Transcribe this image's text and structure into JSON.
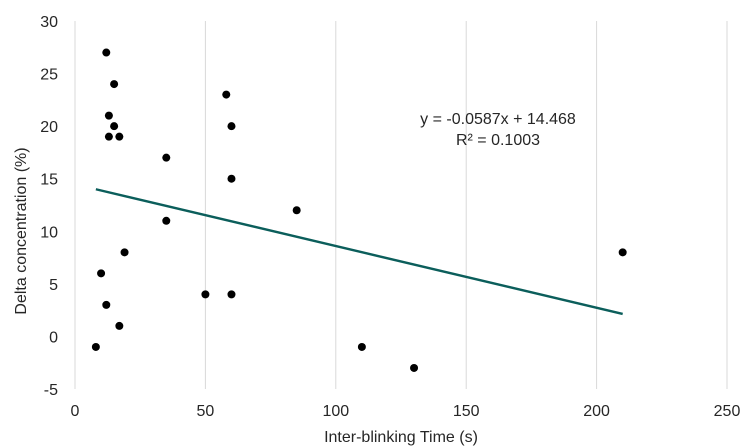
{
  "chart_data": {
    "type": "scatter",
    "title": "",
    "xlabel": "Inter-blinking Time (s)",
    "ylabel": "Delta concentration (%)",
    "xlim": [
      0,
      250
    ],
    "ylim": [
      -5,
      30
    ],
    "x_ticks": [
      "0",
      "50",
      "100",
      "150",
      "200",
      "250"
    ],
    "y_ticks": [
      "-5",
      "0",
      "5",
      "10",
      "15",
      "20",
      "25",
      "30"
    ],
    "grid": "vertical",
    "series": [
      {
        "points": [
          {
            "x": 12,
            "y": 27
          },
          {
            "x": 15,
            "y": 24
          },
          {
            "x": 13,
            "y": 21
          },
          {
            "x": 15,
            "y": 20
          },
          {
            "x": 13,
            "y": 19
          },
          {
            "x": 17,
            "y": 19
          },
          {
            "x": 58,
            "y": 23
          },
          {
            "x": 60,
            "y": 20
          },
          {
            "x": 35,
            "y": 17
          },
          {
            "x": 60,
            "y": 15
          },
          {
            "x": 85,
            "y": 12
          },
          {
            "x": 35,
            "y": 11
          },
          {
            "x": 19,
            "y": 8
          },
          {
            "x": 210,
            "y": 8
          },
          {
            "x": 10,
            "y": 6
          },
          {
            "x": 50,
            "y": 4
          },
          {
            "x": 60,
            "y": 4
          },
          {
            "x": 12,
            "y": 3
          },
          {
            "x": 17,
            "y": 1
          },
          {
            "x": 8,
            "y": -1
          },
          {
            "x": 110,
            "y": -1
          },
          {
            "x": 130,
            "y": -3
          }
        ],
        "color": "#000000"
      }
    ],
    "trendline": {
      "slope": -0.0587,
      "intercept": 14.468,
      "x_range": [
        8,
        210
      ],
      "color": "#0b5e5b",
      "equation_text": "y = -0.0587x + 14.468",
      "r2_text": "R² = 0.1003"
    }
  }
}
